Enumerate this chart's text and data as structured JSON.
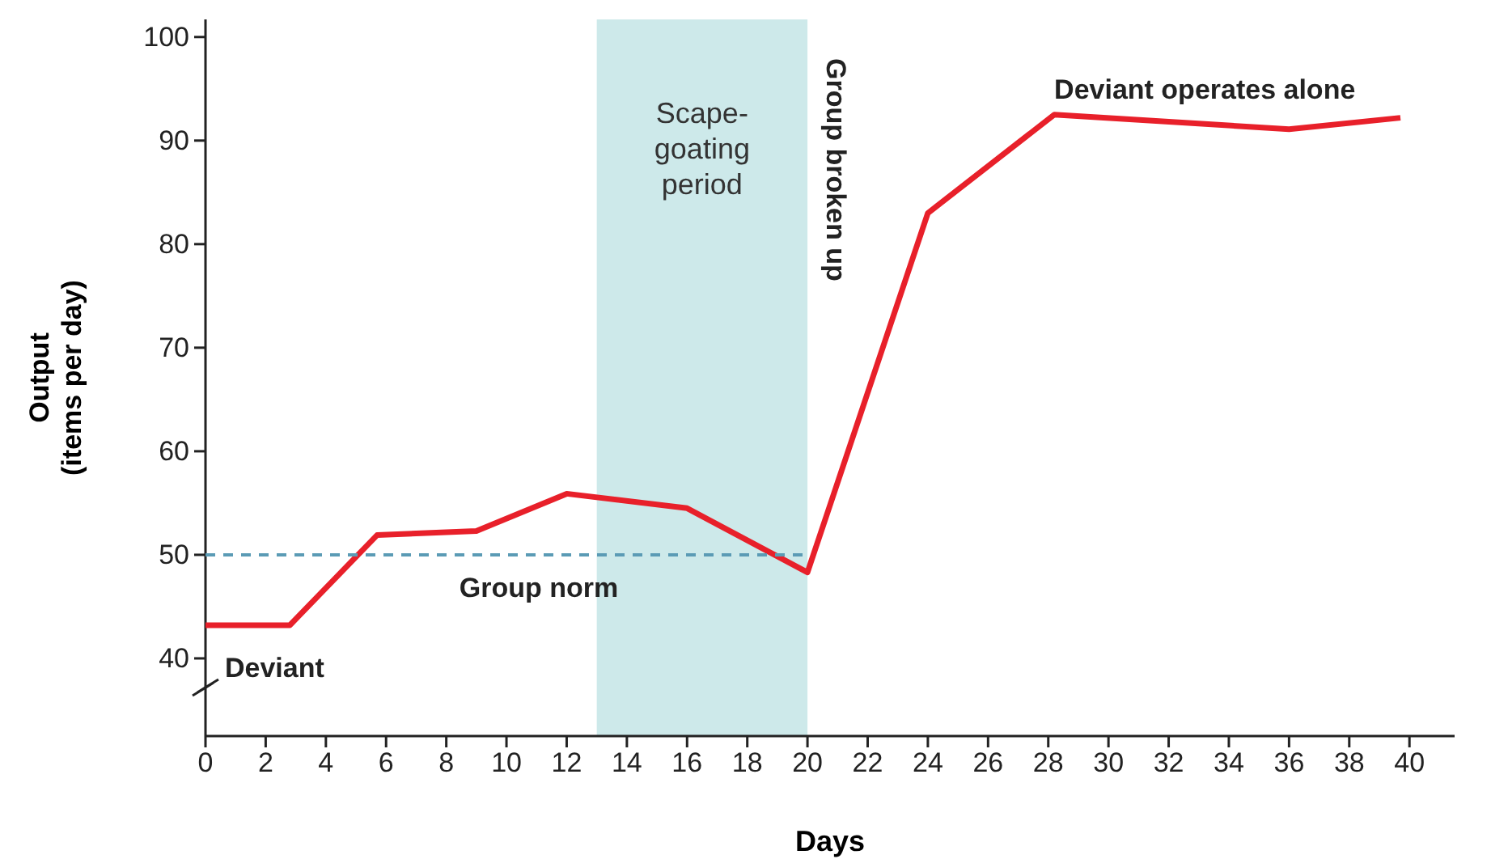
{
  "chart_data": {
    "type": "line",
    "xlabel": "Days",
    "ylabel": "Output\n(items per day)",
    "xlim": [
      0,
      41.5
    ],
    "ylim": [
      32.5,
      101.7
    ],
    "xticks": [
      0,
      2,
      4,
      6,
      8,
      10,
      12,
      14,
      16,
      18,
      20,
      22,
      24,
      26,
      28,
      30,
      32,
      34,
      36,
      38,
      40
    ],
    "yticks": [
      40,
      50,
      60,
      70,
      80,
      90,
      100
    ],
    "marker": "none",
    "series": [
      {
        "color": "#e8202a",
        "x": [
          0,
          2.8,
          5.7,
          9,
          12,
          16,
          20,
          24,
          28.2,
          36,
          39.7
        ],
        "values": [
          43.2,
          43.2,
          51.9,
          52.3,
          55.9,
          54.5,
          48.3,
          83,
          92.5,
          91.1,
          92.2
        ]
      },
      {
        "name": "Group norm",
        "color": "#5b9bb5",
        "line_style": "dashed",
        "x": [
          0,
          20
        ],
        "values": [
          50,
          50
        ]
      }
    ],
    "bands": [
      {
        "axis": "x",
        "from": 13,
        "to": 20,
        "label": "Scape-\ngoating\nperiod",
        "color": "#cde9ea"
      }
    ],
    "annotations": [
      {
        "text": "Deviant",
        "x": 0,
        "y": 43.2
      },
      "Group broken up",
      "Deviant operates alone"
    ]
  }
}
